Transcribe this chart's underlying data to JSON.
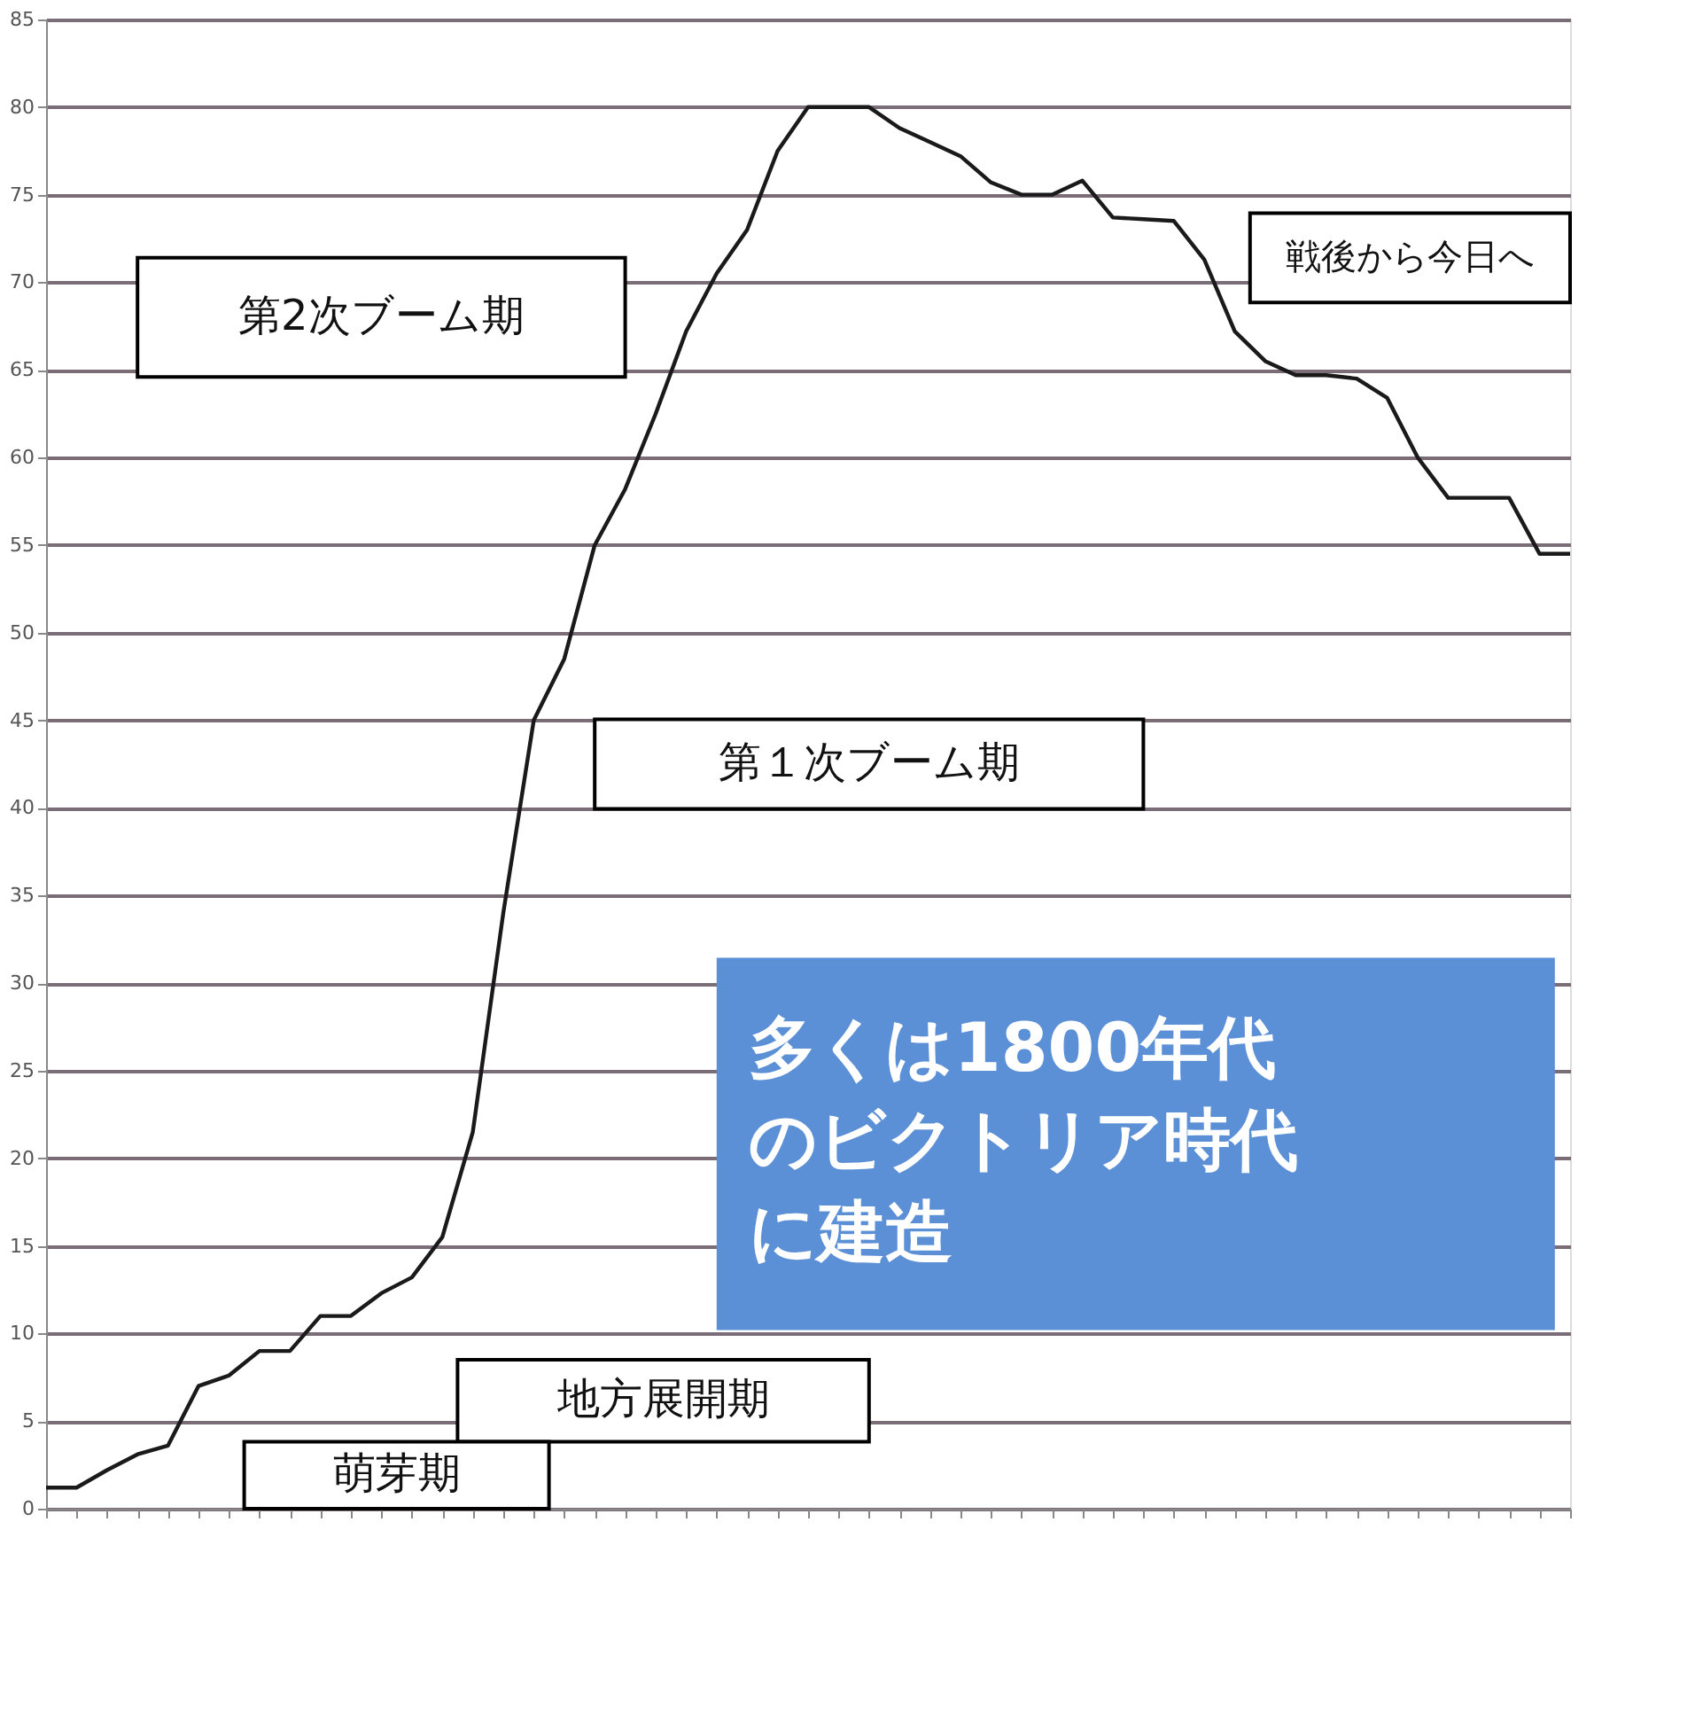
{
  "chart_data": {
    "type": "line",
    "categories": [
      null,
      null,
      null,
      null,
      null,
      null,
      null,
      null,
      null,
      null,
      null,
      null,
      null,
      null,
      null,
      null,
      null,
      null,
      null,
      null,
      null,
      null,
      null,
      null,
      null,
      null,
      null,
      null,
      null,
      null,
      null,
      null,
      null,
      null,
      null,
      null,
      null,
      null,
      null,
      null,
      null,
      null,
      null,
      null,
      null,
      null,
      null,
      null,
      null,
      null,
      null
    ],
    "series": [
      {
        "color": "#1a1a1a",
        "values": [
          1.2,
          1.2,
          2.2,
          3.1,
          3.6,
          7,
          7.6,
          9,
          9,
          11,
          11,
          12.3,
          13.2,
          15.5,
          21.5,
          34,
          45,
          48.5,
          55,
          58.2,
          62.5,
          67.2,
          70.5,
          73,
          77.5,
          80,
          80,
          80,
          78.8,
          78,
          77.2,
          75.7,
          75,
          75,
          75.8,
          73.7,
          73.6,
          73.5,
          71.3,
          67.2,
          65.5,
          64.7,
          64.7,
          64.5,
          63.4,
          60,
          57.7,
          57.7,
          57.7,
          54.5,
          54.5
        ]
      }
    ],
    "ylim": [
      0,
      85
    ],
    "yticks": [
      0,
      5,
      10,
      15,
      20,
      25,
      30,
      35,
      40,
      45,
      50,
      55,
      60,
      65,
      70,
      75,
      80,
      85
    ],
    "grid": "y",
    "tick_labels": "y",
    "marker": "none",
    "line_style": "solid",
    "annotations": [
      "第2次ブーム期",
      "第１次ブーム期",
      "戦後から今日へ",
      "地方展開期",
      "萌芽期",
      "多くは1800年代のビクトリア時代に建造"
    ]
  }
}
